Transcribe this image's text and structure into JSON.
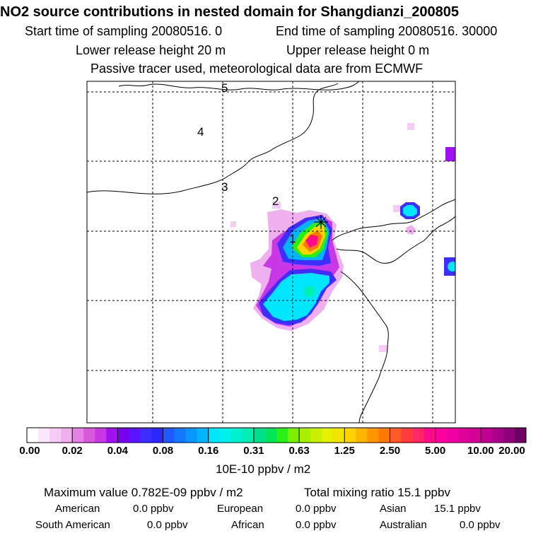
{
  "header": {
    "title": "NO2 source contributions in nested domain for Shangdianzi_200805",
    "start_sampling": "Start time of sampling 20080516.    0",
    "end_sampling": "End time of sampling 20080516. 30000",
    "lower_release": "Lower release height   20 m",
    "upper_release": "Upper release height    0 m",
    "tracer_note": "Passive tracer used, meteorological data are from ECMWF"
  },
  "chart_data": {
    "type": "heatmap",
    "title": "NO2 source contributions in nested domain for Shangdianzi_200805",
    "map_labels": [
      "1",
      "2",
      "3",
      "4",
      "5"
    ],
    "receptor_marker": "star",
    "colorbar": {
      "tick_labels": [
        "0.00",
        "0.02",
        "0.04",
        "0.08",
        "0.16",
        "0.31",
        "0.63",
        "1.25",
        "2.50",
        "5.00",
        "10.00",
        "20.00"
      ],
      "segment_colors": [
        "#ffffff",
        "#fbe6fb",
        "#f6ccf6",
        "#f0b0f0",
        "#e67fe6",
        "#d85ad8",
        "#c838e6",
        "#a010f0",
        "#7a00f0",
        "#5a14ff",
        "#3d2dff",
        "#2828ff",
        "#1e5aff",
        "#1478ff",
        "#0a96ff",
        "#00b4ff",
        "#00e6ff",
        "#00f0ee",
        "#00f0d0",
        "#00f0b4",
        "#00e08a",
        "#00e65a",
        "#28f014",
        "#78f000",
        "#a8f000",
        "#c8f000",
        "#e6f000",
        "#f0e600",
        "#ffd200",
        "#ffb400",
        "#ff9600",
        "#ff7800",
        "#ff5a28",
        "#ff3c3c",
        "#ff2864",
        "#ff0a8c",
        "#ff00a0",
        "#f000a0",
        "#e0009a",
        "#d40096",
        "#c00090",
        "#a80088",
        "#8c0078",
        "#6e0064"
      ],
      "unit": "10E-10 ppbv / m2"
    }
  },
  "stats": {
    "max_value": "Maximum value  0.782E-09 ppbv / m2",
    "total_mixing": "Total mixing ratio      15.1 ppbv"
  },
  "regions": {
    "american": {
      "label": "American",
      "value": "0.0 ppbv"
    },
    "european": {
      "label": "European",
      "value": "0.0 ppbv"
    },
    "asian": {
      "label": "Asian",
      "value": "15.1 ppbv"
    },
    "south_american": {
      "label": "South American",
      "value": "0.0 ppbv"
    },
    "african": {
      "label": "African",
      "value": "0.0 ppbv"
    },
    "australian": {
      "label": "Australian",
      "value": "0.0 ppbv"
    }
  }
}
